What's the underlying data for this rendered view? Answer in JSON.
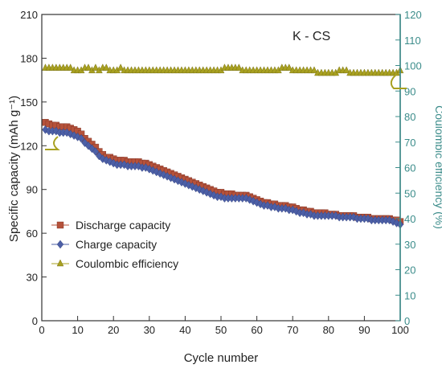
{
  "chart_data": {
    "type": "scatter",
    "title": "",
    "annotation": "K - CS",
    "xlabel": "Cycle number",
    "ylabel_left": "Specific capacity (mAh g⁻¹)",
    "ylabel_right": "Coulombic efficiency (%)",
    "xlim": [
      0,
      100
    ],
    "ylim_left": [
      0,
      210
    ],
    "ylim_right": [
      0,
      120
    ],
    "x_ticks": [
      "0",
      "10",
      "20",
      "30",
      "40",
      "50",
      "60",
      "70",
      "80",
      "90",
      "100"
    ],
    "y_ticks_left": [
      "0",
      "30",
      "60",
      "90",
      "120",
      "150",
      "180",
      "210"
    ],
    "y_ticks_right": [
      "0",
      "10",
      "20",
      "30",
      "40",
      "50",
      "60",
      "70",
      "80",
      "90",
      "100",
      "110",
      "120"
    ],
    "grid": false,
    "legend_position": "center-left",
    "series": [
      {
        "name": "Discharge capacity",
        "axis": "left",
        "marker": "square",
        "color": "#b5523b",
        "values": [
          136,
          135,
          134,
          134,
          133,
          133,
          133,
          132,
          131,
          130,
          128,
          125,
          123,
          121,
          119,
          116,
          114,
          112,
          112,
          111,
          110,
          110,
          110,
          109,
          109,
          109,
          109,
          108,
          108,
          107,
          106,
          105,
          104,
          103,
          102,
          101,
          100,
          99,
          98,
          97,
          96,
          95,
          94,
          93,
          92,
          91,
          90,
          89,
          88,
          88,
          87,
          87,
          87,
          86,
          86,
          86,
          86,
          85,
          84,
          83,
          82,
          81,
          81,
          80,
          80,
          79,
          79,
          79,
          78,
          78,
          77,
          76,
          76,
          75,
          75,
          74,
          74,
          74,
          74,
          73,
          73,
          73,
          72,
          72,
          72,
          72,
          72,
          71,
          71,
          71,
          71,
          70,
          70,
          70,
          70,
          70,
          70,
          69,
          69,
          68
        ]
      },
      {
        "name": "Charge capacity",
        "axis": "left",
        "marker": "diamond",
        "color": "#4c5fa6",
        "values": [
          131,
          130,
          130,
          130,
          129,
          129,
          129,
          128,
          127,
          126,
          125,
          122,
          120,
          118,
          116,
          113,
          111,
          110,
          109,
          108,
          107,
          107,
          107,
          106,
          106,
          106,
          106,
          105,
          105,
          104,
          103,
          102,
          101,
          100,
          99,
          98,
          97,
          96,
          95,
          94,
          93,
          92,
          91,
          90,
          89,
          88,
          87,
          86,
          85,
          85,
          84,
          84,
          84,
          84,
          84,
          84,
          84,
          83,
          82,
          81,
          80,
          79,
          79,
          78,
          78,
          77,
          77,
          77,
          76,
          76,
          75,
          74,
          74,
          73,
          73,
          72,
          72,
          72,
          72,
          72,
          72,
          72,
          71,
          71,
          71,
          71,
          71,
          70,
          70,
          70,
          70,
          69,
          69,
          69,
          69,
          69,
          69,
          68,
          67,
          66
        ]
      },
      {
        "name": "Coulombic efficiency",
        "axis": "right",
        "marker": "triangle",
        "color": "#a8a020",
        "values": [
          99,
          99,
          99,
          99,
          99,
          99,
          99,
          99,
          98,
          98,
          98,
          99,
          99,
          98,
          99,
          98,
          99,
          99,
          98,
          98,
          98,
          99,
          98,
          98,
          98,
          98,
          98,
          98,
          98,
          98,
          98,
          98,
          98,
          98,
          98,
          98,
          98,
          98,
          98,
          98,
          98,
          98,
          98,
          98,
          98,
          98,
          98,
          98,
          98,
          98,
          99,
          99,
          99,
          99,
          99,
          98,
          98,
          98,
          98,
          98,
          98,
          98,
          98,
          98,
          98,
          98,
          99,
          99,
          99,
          98,
          98,
          98,
          98,
          98,
          98,
          98,
          97,
          97,
          97,
          97,
          97,
          97,
          98,
          98,
          98,
          97,
          97,
          97,
          97,
          97,
          97,
          97,
          97,
          97,
          97,
          97,
          97,
          97,
          97,
          98
        ]
      }
    ]
  }
}
